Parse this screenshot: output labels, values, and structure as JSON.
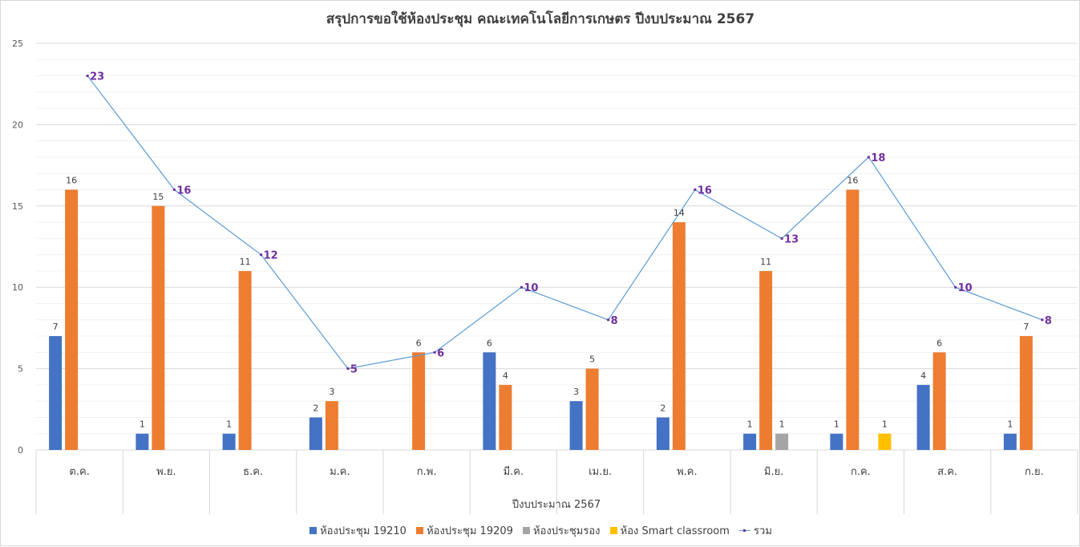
{
  "chart_data": {
    "type": "bar",
    "title": "สรุปการขอใช้ห้องประชุม คณะเทคโนโลยีการเกษตร ปีงบประมาณ 2567",
    "xlabel": "ปีงบประมาณ 2567",
    "ylabel": "",
    "ylim": [
      0,
      25
    ],
    "yticks": [
      "0",
      "5",
      "10",
      "15",
      "20",
      "25"
    ],
    "grid": true,
    "legend_position": "bottom",
    "categories": [
      "ต.ค.",
      "พ.ย.",
      "ธ.ค.",
      "ม.ค.",
      "ก.พ.",
      "มี.ค.",
      "เม.ย.",
      "พ.ค.",
      "มิ.ย.",
      "ก.ค.",
      "ส.ค.",
      "ก.ย."
    ],
    "series": [
      {
        "name": "ห้องประชุม 19210",
        "type": "bar",
        "color": "#4472c4",
        "values": [
          7,
          1,
          1,
          2,
          null,
          6,
          3,
          2,
          1,
          1,
          4,
          1
        ]
      },
      {
        "name": "ห้องประชุม 19209",
        "type": "bar",
        "color": "#ed7d31",
        "values": [
          16,
          15,
          11,
          3,
          6,
          4,
          5,
          14,
          11,
          16,
          6,
          7
        ]
      },
      {
        "name": "ห้องประชุมรอง",
        "type": "bar",
        "color": "#a5a5a5",
        "values": [
          null,
          null,
          null,
          null,
          null,
          null,
          null,
          null,
          1,
          null,
          null,
          null
        ]
      },
      {
        "name": "ห้อง Smart classroom",
        "type": "bar",
        "color": "#ffc000",
        "values": [
          null,
          null,
          null,
          null,
          null,
          null,
          null,
          null,
          null,
          1,
          null,
          null
        ]
      },
      {
        "name": "รวม",
        "type": "line",
        "color": "#5b9bd5",
        "label_color": "#7030a0",
        "values": [
          23,
          16,
          12,
          5,
          6,
          10,
          8,
          16,
          13,
          18,
          10,
          8
        ]
      }
    ]
  }
}
